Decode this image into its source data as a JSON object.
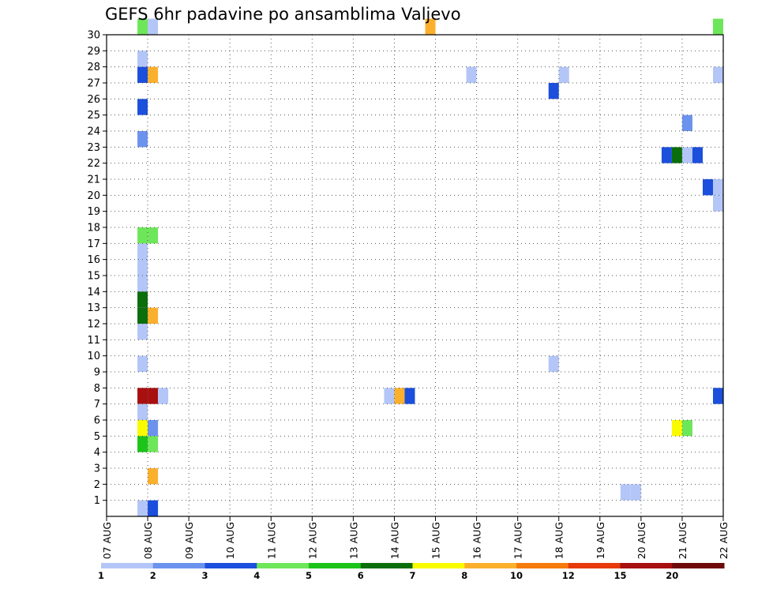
{
  "chart_data": {
    "type": "heatmap",
    "title": "GEFS 6hr padavine po ansamblima Valjevo",
    "xlabel": "",
    "ylabel": "",
    "x_tick_labels": [
      "07 AUG",
      "08 AUG",
      "09 AUG",
      "10 AUG",
      "11 AUG",
      "12 AUG",
      "13 AUG",
      "14 AUG",
      "15 AUG",
      "16 AUG",
      "17 AUG",
      "18 AUG",
      "19 AUG",
      "20 AUG",
      "21 AUG",
      "22 AUG"
    ],
    "y_tick_labels": [
      "1",
      "2",
      "3",
      "4",
      "5",
      "6",
      "7",
      "8",
      "9",
      "10",
      "11",
      "12",
      "13",
      "14",
      "15",
      "16",
      "17",
      "18",
      "19",
      "20",
      "21",
      "22",
      "23",
      "24",
      "25",
      "26",
      "27",
      "28",
      "29",
      "30"
    ],
    "x_unit": "6-hour steps from 07 AUG 00Z",
    "xlim": [
      0,
      60
    ],
    "ylim": [
      0,
      30
    ],
    "grid": true,
    "legend": {
      "position": "bottom",
      "labels": [
        "1",
        "2",
        "3",
        "4",
        "5",
        "6",
        "7",
        "8",
        "10",
        "12",
        "15",
        "20"
      ],
      "colors": [
        "#b3c6f7",
        "#6b93ee",
        "#1b4fdc",
        "#6ee65a",
        "#1cc41a",
        "#0a6e0a",
        "#fbfb00",
        "#fbb02d",
        "#f77b0c",
        "#e63a0a",
        "#a80f0f",
        "#6e0a0a"
      ]
    },
    "cells": [
      {
        "t": 3,
        "member": 30,
        "bin": 4
      },
      {
        "t": 4,
        "member": 30,
        "bin": 1
      },
      {
        "t": 31,
        "member": 30,
        "bin": 8
      },
      {
        "t": 59,
        "member": 30,
        "bin": 4
      },
      {
        "t": 3,
        "member": 28,
        "bin": 1
      },
      {
        "t": 3,
        "member": 27,
        "bin": 3
      },
      {
        "t": 4,
        "member": 27,
        "bin": 8
      },
      {
        "t": 35,
        "member": 27,
        "bin": 1
      },
      {
        "t": 44,
        "member": 27,
        "bin": 1
      },
      {
        "t": 59,
        "member": 27,
        "bin": 1
      },
      {
        "t": 43,
        "member": 26,
        "bin": 3
      },
      {
        "t": 3,
        "member": 25,
        "bin": 3
      },
      {
        "t": 56,
        "member": 24,
        "bin": 2
      },
      {
        "t": 3,
        "member": 23,
        "bin": 2
      },
      {
        "t": 54,
        "member": 22,
        "bin": 3
      },
      {
        "t": 55,
        "member": 22,
        "bin": 6
      },
      {
        "t": 56,
        "member": 22,
        "bin": 1
      },
      {
        "t": 57,
        "member": 22,
        "bin": 3
      },
      {
        "t": 58,
        "member": 20,
        "bin": 3
      },
      {
        "t": 59,
        "member": 20,
        "bin": 1
      },
      {
        "t": 59,
        "member": 19,
        "bin": 1
      },
      {
        "t": 3,
        "member": 17,
        "bin": 4
      },
      {
        "t": 4,
        "member": 17,
        "bin": 4
      },
      {
        "t": 3,
        "member": 16,
        "bin": 1
      },
      {
        "t": 3,
        "member": 15,
        "bin": 1
      },
      {
        "t": 3,
        "member": 14,
        "bin": 1
      },
      {
        "t": 3,
        "member": 13,
        "bin": 6
      },
      {
        "t": 4,
        "member": 12,
        "bin": 8
      },
      {
        "t": 3,
        "member": 12,
        "bin": 6
      },
      {
        "t": 3,
        "member": 11,
        "bin": 1
      },
      {
        "t": 3,
        "member": 9,
        "bin": 1
      },
      {
        "t": 43,
        "member": 9,
        "bin": 1
      },
      {
        "t": 3,
        "member": 7,
        "bin": 11
      },
      {
        "t": 4,
        "member": 7,
        "bin": 11
      },
      {
        "t": 5,
        "member": 7,
        "bin": 1
      },
      {
        "t": 27,
        "member": 7,
        "bin": 1
      },
      {
        "t": 28,
        "member": 7,
        "bin": 8
      },
      {
        "t": 29,
        "member": 7,
        "bin": 3
      },
      {
        "t": 59,
        "member": 7,
        "bin": 3
      },
      {
        "t": 3,
        "member": 6,
        "bin": 1
      },
      {
        "t": 3,
        "member": 5,
        "bin": 7
      },
      {
        "t": 4,
        "member": 5,
        "bin": 2
      },
      {
        "t": 55,
        "member": 5,
        "bin": 7
      },
      {
        "t": 56,
        "member": 5,
        "bin": 4
      },
      {
        "t": 3,
        "member": 4,
        "bin": 5
      },
      {
        "t": 4,
        "member": 4,
        "bin": 4
      },
      {
        "t": 4,
        "member": 2,
        "bin": 8
      },
      {
        "t": 50,
        "member": 1,
        "bin": 1
      },
      {
        "t": 51,
        "member": 1,
        "bin": 1
      },
      {
        "t": 3,
        "member": 0,
        "bin": 1
      },
      {
        "t": 4,
        "member": 0,
        "bin": 3
      }
    ]
  }
}
